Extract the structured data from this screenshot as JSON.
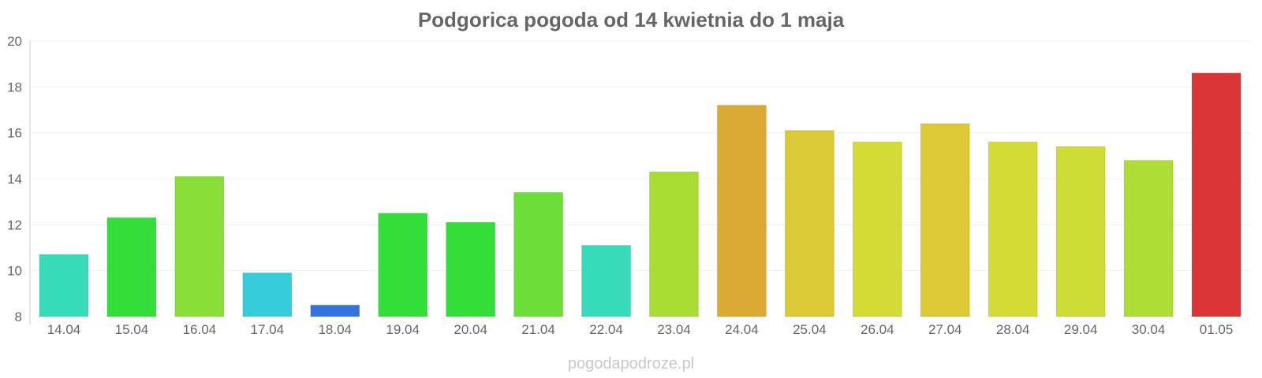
{
  "chart_data": {
    "type": "bar",
    "title": "Podgorica pogoda od 14 kwietnia do 1 maja",
    "xlabel": "",
    "ylabel": "",
    "categories": [
      "14.04",
      "15.04",
      "16.04",
      "17.04",
      "18.04",
      "19.04",
      "20.04",
      "21.04",
      "22.04",
      "23.04",
      "24.04",
      "25.04",
      "26.04",
      "27.04",
      "28.04",
      "29.04",
      "30.04",
      "01.05"
    ],
    "values": [
      10.7,
      12.3,
      14.1,
      9.9,
      8.5,
      12.5,
      12.1,
      13.4,
      11.1,
      14.3,
      17.2,
      16.1,
      15.6,
      16.4,
      15.6,
      15.4,
      14.8,
      18.6
    ],
    "colors": [
      "#36dbb9",
      "#33de3a",
      "#8ade38",
      "#36ccdc",
      "#3574dc",
      "#33de3a",
      "#33de3a",
      "#6ddd3a",
      "#36dbb9",
      "#a8dd36",
      "#dbaa35",
      "#dbc935",
      "#d2dc35",
      "#ddc835",
      "#d2dc35",
      "#cddd35",
      "#addd36",
      "#dc3535"
    ],
    "ylim": [
      8,
      20
    ],
    "yticks": [
      8,
      10,
      12,
      14,
      16,
      18,
      20
    ],
    "grid": true,
    "legend": "none"
  },
  "watermark": "pogodapodroze.pl"
}
